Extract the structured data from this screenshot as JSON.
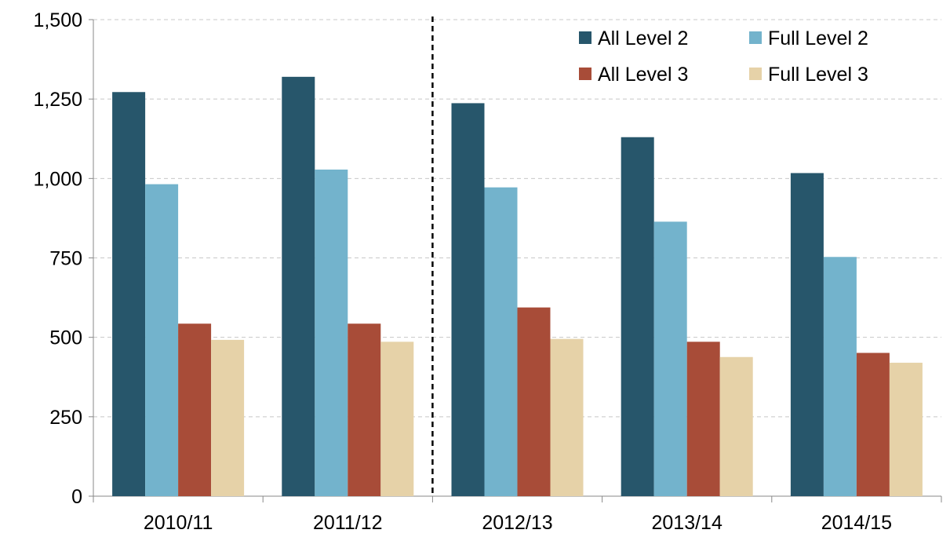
{
  "chart_data": {
    "type": "bar",
    "title": "",
    "xlabel": "",
    "ylabel": "",
    "categories": [
      "2010/11",
      "2011/12",
      "2012/13",
      "2013/14",
      "2014/15"
    ],
    "series": [
      {
        "name": "All Level 2",
        "color": "#27566b",
        "values": [
          1272,
          1320,
          1237,
          1130,
          1017
        ]
      },
      {
        "name": "Full Level 2",
        "color": "#73b3cc",
        "values": [
          982,
          1028,
          972,
          864,
          753
        ]
      },
      {
        "name": "All Level 3",
        "color": "#a84c38",
        "values": [
          543,
          543,
          594,
          486,
          451
        ]
      },
      {
        "name": "Full Level 3",
        "color": "#e6d2a8",
        "values": [
          492,
          486,
          495,
          438,
          420
        ]
      }
    ],
    "ylim": [
      0,
      1500
    ],
    "yticks": [
      0,
      250,
      500,
      750,
      1000,
      1250,
      1500
    ],
    "ytick_labels": [
      "0",
      "250",
      "500",
      "750",
      "1,000",
      "1,250",
      "1,500"
    ],
    "grid": true,
    "legend_position": "top-right",
    "divider_after_category": "2011/12"
  }
}
